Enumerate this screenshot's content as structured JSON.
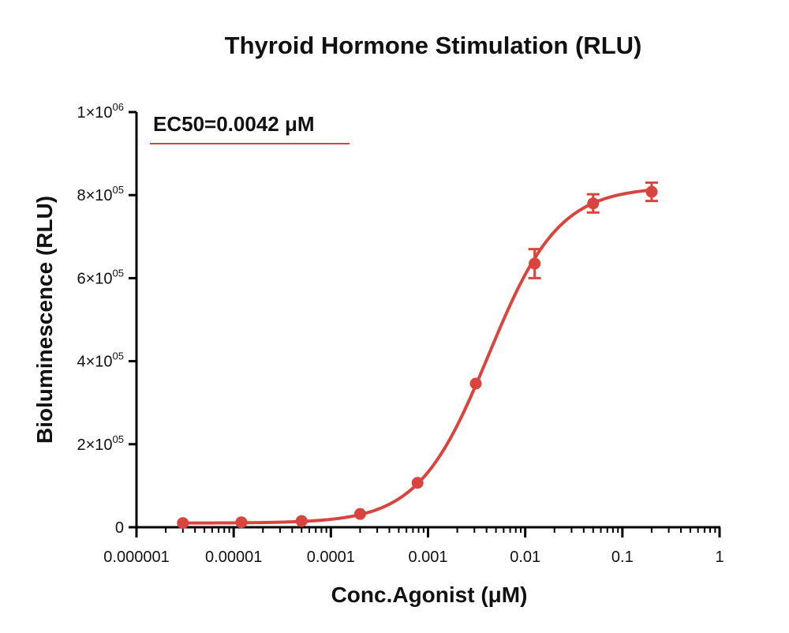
{
  "chart_data": {
    "type": "scatter",
    "title": "Thyroid Hormone Stimulation (RLU)",
    "xlabel": "Conc.Agonist (μM)",
    "ylabel": "Bioluminescence (RLU)",
    "x_scale": "log",
    "xlim": [
      1e-06,
      1
    ],
    "ylim": [
      0,
      1000000
    ],
    "x_ticks": [
      {
        "value": 1e-06,
        "label": "0.000001"
      },
      {
        "value": 1e-05,
        "label": "0.00001"
      },
      {
        "value": 0.0001,
        "label": "0.0001"
      },
      {
        "value": 0.001,
        "label": "0.001"
      },
      {
        "value": 0.01,
        "label": "0.01"
      },
      {
        "value": 0.1,
        "label": "0.1"
      },
      {
        "value": 1,
        "label": "1"
      }
    ],
    "y_ticks": [
      {
        "value": 0,
        "label": "0",
        "mantissa": "",
        "exponent": ""
      },
      {
        "value": 200000,
        "label": "2×10",
        "mantissa": "2×10",
        "exponent": "05"
      },
      {
        "value": 400000,
        "label": "4×10",
        "mantissa": "4×10",
        "exponent": "05"
      },
      {
        "value": 600000,
        "label": "6×10",
        "mantissa": "6×10",
        "exponent": "05"
      },
      {
        "value": 800000,
        "label": "8×10",
        "mantissa": "8×10",
        "exponent": "05"
      },
      {
        "value": 1000000,
        "label": "1×10",
        "mantissa": "1×10",
        "exponent": "06"
      }
    ],
    "grid": false,
    "legend_position": "top-left",
    "series": [
      {
        "name": "EC50=0.0042 μM",
        "color": "#d9443f",
        "x": [
          3e-06,
          1.2e-05,
          5e-05,
          0.0002,
          0.00078,
          0.0031,
          0.0125,
          0.05,
          0.2
        ],
        "y": [
          10000,
          12000,
          15000,
          32000,
          107000,
          346000,
          635000,
          780000,
          808000
        ],
        "error": [
          0,
          0,
          0,
          0,
          0,
          0,
          35000,
          22000,
          22000
        ],
        "fit": {
          "model": "4PL",
          "bottom": 10000,
          "top": 820000,
          "ec50": 0.0042,
          "hill": 1.2
        }
      }
    ]
  }
}
